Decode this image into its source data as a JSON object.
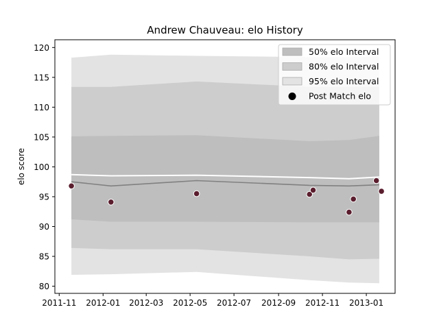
{
  "chart_data": {
    "type": "area",
    "title": "Andrew Chauveau: elo History",
    "xlabel": "",
    "ylabel": "elo score",
    "xlim": [
      "2011-10-26",
      "2013-02-10"
    ],
    "ylim": [
      78.8,
      121.3
    ],
    "x_ticks": [
      "2011-11",
      "2012-01",
      "2012-03",
      "2012-05",
      "2012-07",
      "2012-09",
      "2012-11",
      "2013-01"
    ],
    "y_ticks": [
      80,
      85,
      90,
      95,
      100,
      105,
      110,
      115,
      120
    ],
    "grid": false,
    "legend_position": "top-right",
    "x": [
      "2011-11-18",
      "2012-01-12",
      "2012-05-10",
      "2012-10-14",
      "2012-12-08",
      "2013-01-19"
    ],
    "bands": [
      {
        "name": "95% elo Interval",
        "color": "#e3e3e3",
        "lower": [
          81.9,
          82.0,
          82.4,
          81.0,
          80.6,
          80.5
        ],
        "upper": [
          118.3,
          118.8,
          118.6,
          118.4,
          118.4,
          118.5
        ]
      },
      {
        "name": "80% elo Interval",
        "color": "#cdcdcd",
        "lower": [
          86.4,
          86.2,
          86.2,
          85.0,
          84.5,
          84.6
        ],
        "upper": [
          113.4,
          113.4,
          114.3,
          113.4,
          113.4,
          113.4
        ]
      },
      {
        "name": "50% elo Interval",
        "color": "#bebebe",
        "lower": [
          91.2,
          90.8,
          90.8,
          90.7,
          90.7,
          90.7
        ],
        "upper": [
          105.1,
          105.2,
          105.3,
          104.3,
          104.5,
          105.2
        ]
      }
    ],
    "series": [
      {
        "role": "mean",
        "color": "#ffffff",
        "values": [
          98.7,
          98.5,
          98.6,
          98.2,
          98.0,
          98.3
        ]
      },
      {
        "role": "median",
        "color": "#808080",
        "values": [
          97.5,
          96.8,
          97.7,
          96.9,
          96.8,
          97.0
        ]
      }
    ],
    "points": {
      "name": "Post Match elo",
      "color": "#5a1e2e",
      "x": [
        "2011-11-18",
        "2012-01-12",
        "2012-05-10",
        "2012-10-14",
        "2012-10-19",
        "2012-12-08",
        "2012-12-14",
        "2013-01-15",
        "2013-01-22"
      ],
      "y": [
        96.8,
        94.1,
        95.5,
        95.4,
        96.1,
        92.4,
        94.6,
        97.7,
        95.9
      ]
    }
  }
}
